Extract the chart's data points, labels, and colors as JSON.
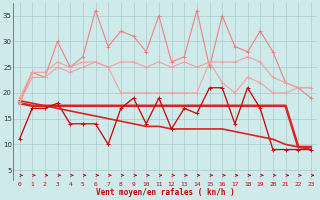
{
  "x": [
    0,
    1,
    2,
    3,
    4,
    5,
    6,
    7,
    8,
    9,
    10,
    11,
    12,
    13,
    14,
    15,
    16,
    17,
    18,
    19,
    20,
    21,
    22,
    23
  ],
  "series": [
    {
      "name": "rafales_high",
      "color": "#f08080",
      "linewidth": 0.8,
      "markersize": 2.5,
      "y": [
        18,
        24,
        23,
        30,
        25,
        27,
        36,
        29,
        32,
        31,
        28,
        35,
        26,
        27,
        36,
        25,
        35,
        29,
        28,
        32,
        28,
        22,
        21,
        19
      ]
    },
    {
      "name": "rafales_band1",
      "color": "#f4a0a0",
      "linewidth": 0.8,
      "markersize": 2.5,
      "y": [
        18,
        23,
        23,
        25,
        24,
        25,
        26,
        25,
        26,
        26,
        25,
        26,
        25,
        26,
        25,
        26,
        26,
        26,
        27,
        26,
        23,
        22,
        21,
        21
      ]
    },
    {
      "name": "rafales_band2",
      "color": "#f4a0a0",
      "linewidth": 0.8,
      "markersize": 2.5,
      "y": [
        19,
        24,
        24,
        26,
        25,
        26,
        26,
        25,
        20,
        20,
        20,
        20,
        20,
        20,
        20,
        26,
        22,
        20,
        23,
        22,
        20,
        20,
        21,
        21
      ]
    },
    {
      "name": "vent_moyen_flat",
      "color": "#dd2222",
      "linewidth": 1.8,
      "markersize": 0,
      "y": [
        18,
        17.5,
        17.5,
        17.5,
        17.5,
        17.5,
        17.5,
        17.5,
        17.5,
        17.5,
        17.5,
        17.5,
        17.5,
        17.5,
        17.5,
        17.5,
        17.5,
        17.5,
        17.5,
        17.5,
        17.5,
        17.5,
        9.5,
        9.5
      ]
    },
    {
      "name": "vent_declining",
      "color": "#dd2222",
      "linewidth": 1.2,
      "markersize": 0,
      "y": [
        18.5,
        18.0,
        17.5,
        17.0,
        16.5,
        16.0,
        15.5,
        15.0,
        14.5,
        14.0,
        13.5,
        13.5,
        13.0,
        13.0,
        13.0,
        13.0,
        13.0,
        12.5,
        12.0,
        11.5,
        11.0,
        10.0,
        9.5,
        9.0
      ]
    },
    {
      "name": "vent_instant",
      "color": "#cc0000",
      "linewidth": 0.9,
      "markersize": 2.5,
      "y": [
        11,
        17,
        17,
        18,
        14,
        14,
        14,
        10,
        17,
        19,
        14,
        19,
        13,
        17,
        16,
        21,
        21,
        14,
        21,
        17,
        9,
        9,
        9,
        9
      ]
    }
  ],
  "arrows": {
    "y": 4.0,
    "color": "#cc0000",
    "directions": [
      4,
      4,
      4,
      4,
      3,
      4,
      4,
      4,
      4,
      4,
      4,
      4,
      4,
      4,
      4,
      4,
      4,
      4,
      4,
      4,
      4,
      4,
      4,
      4
    ]
  },
  "xlabel": "Vent moyen/en rafales ( kn/h )",
  "ylabel_ticks": [
    5,
    10,
    15,
    20,
    25,
    30,
    35
  ],
  "xlim": [
    -0.5,
    23.5
  ],
  "ylim": [
    3.0,
    37.5
  ],
  "bg_color": "#ceeaea",
  "grid_color": "#aacccc",
  "label_color": "#cc0000",
  "xlabel_fontsize": 5.5,
  "tick_fontsize": 4.5
}
